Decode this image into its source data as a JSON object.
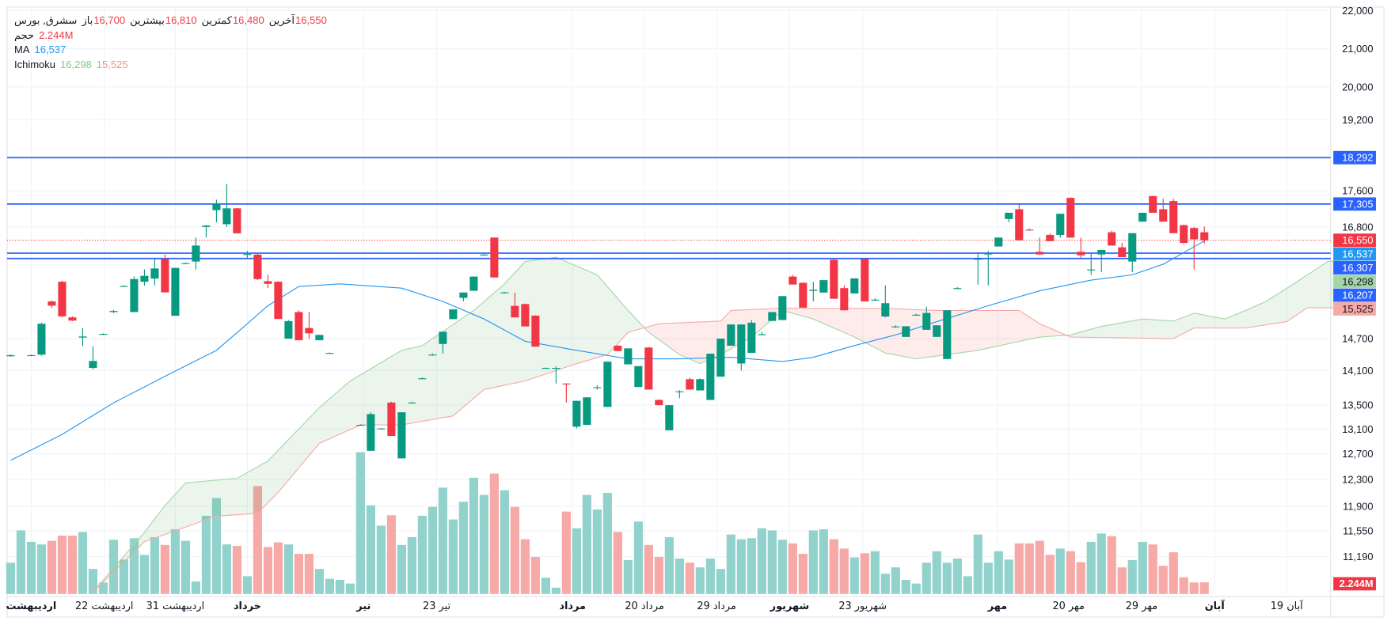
{
  "legend": {
    "symbol": "سشرق, بورس",
    "ohlc": [
      {
        "label": "باز",
        "value": "16,700"
      },
      {
        "label": "بیشترین",
        "value": "16,810"
      },
      {
        "label": "کمترین",
        "value": "16,480"
      },
      {
        "label": "آخرین",
        "value": "16,550"
      }
    ],
    "volume_label": "حجم",
    "volume_value": "2.244M",
    "ma_label": "MA",
    "ma_value": "16,537",
    "ichimoku_label": "Ichimoku",
    "ichimoku_a": "16,298",
    "ichimoku_b": "15,525"
  },
  "colors": {
    "up": "#089981",
    "down": "#f23645",
    "vol_up": "#92d2cc",
    "vol_down": "#f7a9a7",
    "ma": "#2196f3",
    "hline": "#2962ff",
    "span_a": "#a5d6a7",
    "span_b": "#f7a9a7"
  },
  "chart_data": {
    "type": "candlestick",
    "y_ticks": [
      "22,000",
      "21,000",
      "20,000",
      "19,200",
      "17,600",
      "16,800",
      "14,700",
      "14,100",
      "13,500",
      "13,100",
      "12,700",
      "12,300",
      "11,900",
      "11,550",
      "11,190"
    ],
    "x_labels": [
      {
        "bar": 2,
        "text": "اردیبهشت",
        "bold": true
      },
      {
        "bar": 9.1,
        "text": "22 اردیبهشت",
        "bold": false
      },
      {
        "bar": 16,
        "text": "31 اردیبهشت",
        "bold": false
      },
      {
        "bar": 23,
        "text": "خرداد",
        "bold": true
      },
      {
        "bar": 34.3,
        "text": "تیر",
        "bold": true
      },
      {
        "bar": 41.4,
        "text": "23 تیر",
        "bold": false
      },
      {
        "bar": 54.6,
        "text": "مرداد",
        "bold": true
      },
      {
        "bar": 61.6,
        "text": "20 مرداد",
        "bold": false
      },
      {
        "bar": 68.6,
        "text": "29 مرداد",
        "bold": false
      },
      {
        "bar": 75.7,
        "text": "شهریور",
        "bold": true
      },
      {
        "bar": 82.8,
        "text": "23 شهریور",
        "bold": false
      },
      {
        "bar": 95.9,
        "text": "مهر",
        "bold": true
      },
      {
        "bar": 102.8,
        "text": "20 مهر",
        "bold": false
      },
      {
        "bar": 109.9,
        "text": "29 مهر",
        "bold": false
      },
      {
        "bar": 117,
        "text": "آبان",
        "bold": true
      },
      {
        "bar": 124,
        "text": "19 آبان",
        "bold": false
      }
    ],
    "horizontal_lines": [
      18292,
      17305,
      16307,
      16207
    ],
    "price_tags": [
      {
        "value": 18292,
        "text": "18,292",
        "color": "#2962ff"
      },
      {
        "value": 17305,
        "text": "17,305",
        "color": "#2962ff"
      },
      {
        "value": 16550,
        "text": "16,550",
        "color": "#f23645"
      },
      {
        "value": 16537,
        "text": "16,537",
        "color": "#2196f3"
      },
      {
        "value": 16307,
        "text": "16,307",
        "color": "#2962ff"
      },
      {
        "value": 16298,
        "text": "16,298",
        "color": "#a5d6a7"
      },
      {
        "value": 16207,
        "text": "16,207",
        "color": "#2962ff"
      },
      {
        "value": 15525,
        "text": "15,525",
        "color": "#f7a9a7"
      }
    ],
    "last_price": 16550,
    "volume_tag": "2.244M",
    "candles_ohlc": [
      [
        14370,
        14400,
        14360,
        14390
      ],
      null,
      [
        14380,
        14400,
        14370,
        14390
      ],
      [
        14400,
        15000,
        14380,
        14980
      ],
      [
        15400,
        15420,
        15280,
        15320
      ],
      [
        15770,
        15790,
        15100,
        15120
      ],
      [
        15100,
        15120,
        15030,
        15040
      ],
      [
        14720,
        14900,
        14560,
        14740
      ],
      [
        14150,
        14560,
        14120,
        14280
      ],
      [
        14780,
        14800,
        14770,
        14790
      ],
      [
        15200,
        15240,
        15180,
        15220
      ],
      [
        15680,
        15700,
        15670,
        15690
      ],
      [
        15200,
        15870,
        15200,
        15820
      ],
      [
        15770,
        16000,
        15700,
        15880
      ],
      [
        15830,
        16200,
        15700,
        16020
      ],
      [
        16200,
        16280,
        15570,
        15570
      ],
      [
        15130,
        16030,
        15130,
        16030
      ],
      [
        16110,
        16130,
        16100,
        16120
      ],
      [
        16150,
        16600,
        16000,
        16450
      ],
      [
        16800,
        16840,
        16600,
        16830
      ],
      [
        17170,
        17400,
        16900,
        17300
      ],
      [
        16860,
        17740,
        16800,
        17210
      ],
      [
        17210,
        17220,
        16680,
        16680
      ],
      [
        16280,
        16350,
        16200,
        16290
      ],
      [
        16280,
        16300,
        15800,
        15820
      ],
      [
        15780,
        15900,
        15650,
        15730
      ],
      [
        15770,
        15780,
        15070,
        15070
      ],
      [
        14700,
        15050,
        14700,
        15030
      ],
      [
        15200,
        15230,
        14670,
        14670
      ],
      [
        14900,
        15200,
        14700,
        14800
      ],
      [
        14670,
        14770,
        14670,
        14770
      ],
      [
        14430,
        14440,
        14420,
        14430
      ],
      null,
      null,
      [
        13170,
        13180,
        13160,
        13170
      ],
      [
        12750,
        13380,
        12750,
        13350
      ],
      [
        13110,
        13120,
        13100,
        13110
      ],
      [
        13545,
        13560,
        12990,
        12990
      ],
      [
        12630,
        13380,
        12630,
        13380
      ],
      [
        13545,
        13560,
        13530,
        13545
      ],
      [
        13965,
        13980,
        13950,
        13965
      ],
      [
        14400,
        14420,
        14380,
        14400
      ],
      [
        14600,
        14830,
        14420,
        14830
      ],
      [
        15067,
        15250,
        15067,
        15250
      ],
      [
        15467,
        15567,
        15400,
        15567
      ],
      [
        15600,
        15870,
        15600,
        15867
      ],
      [
        16280,
        16300,
        16260,
        16280
      ],
      [
        16600,
        16600,
        15850,
        15850
      ],
      [
        15570,
        15580,
        15560,
        15570
      ],
      [
        15317,
        15567,
        15100,
        15100
      ],
      [
        15350,
        15360,
        14930,
        14930
      ],
      [
        15133,
        15140,
        14550,
        14550
      ],
      [
        14150,
        14160,
        14140,
        14150
      ],
      [
        14150,
        14180,
        13875,
        14150
      ],
      [
        13875,
        13880,
        13545,
        13870
      ],
      [
        13140,
        13575,
        13110,
        13575
      ],
      [
        13170,
        13635,
        13170,
        13635
      ],
      [
        13800,
        13845,
        13770,
        13810
      ],
      [
        13470,
        14267,
        13470,
        14267
      ],
      [
        14567,
        14580,
        14467,
        14467
      ],
      [
        14217,
        14517,
        14217,
        14517
      ],
      [
        13815,
        14183,
        13815,
        14183
      ],
      [
        14533,
        14540,
        13770,
        13770
      ],
      [
        13590,
        13600,
        13500,
        13500
      ],
      [
        13080,
        13500,
        13080,
        13500
      ],
      [
        13740,
        13760,
        13620,
        13740
      ],
      [
        13950,
        13980,
        13770,
        13770
      ],
      [
        13755,
        13965,
        13755,
        13950
      ],
      [
        13590,
        14417,
        13590,
        14417
      ],
      [
        13995,
        14700,
        13995,
        14700
      ],
      [
        14567,
        14967,
        14567,
        14967
      ],
      [
        14233,
        14967,
        14100,
        14967
      ],
      [
        14433,
        15050,
        14433,
        15000
      ],
      [
        14780,
        14830,
        14760,
        14783
      ],
      [
        15033,
        15200,
        15033,
        15200
      ],
      [
        15050,
        15500,
        15050,
        15500
      ],
      [
        15867,
        15900,
        15717,
        15717
      ],
      [
        15750,
        15760,
        15283,
        15283
      ],
      [
        15600,
        15767,
        15400,
        15620
      ],
      [
        15567,
        15800,
        15567,
        15800
      ],
      [
        16183,
        16200,
        15450,
        15450
      ],
      [
        15650,
        15700,
        15233,
        15233
      ],
      [
        15550,
        15833,
        15550,
        15833
      ],
      [
        16200,
        16210,
        15400,
        15400
      ],
      [
        15433,
        15460,
        15410,
        15433
      ],
      [
        15117,
        15700,
        15100,
        15367
      ],
      [
        14930,
        14950,
        14900,
        14930
      ],
      [
        14733,
        14933,
        14733,
        14933
      ],
      [
        15150,
        15170,
        15130,
        15150
      ],
      [
        14867,
        15300,
        14867,
        15183
      ],
      [
        14733,
        14950,
        14733,
        14950
      ],
      [
        14317,
        15233,
        14317,
        15233
      ],
      [
        15650,
        15670,
        15630,
        15650
      ],
      null,
      [
        16200,
        16300,
        15717,
        16200
      ],
      [
        16300,
        16350,
        15700,
        16300
      ],
      [
        16433,
        16600,
        16433,
        16600
      ],
      [
        16975,
        17112,
        16900,
        17112
      ],
      [
        17190,
        17300,
        16550,
        16550
      ],
      [
        16750,
        16770,
        16730,
        16740
      ],
      [
        16333,
        16600,
        16283,
        16283
      ],
      [
        16650,
        16680,
        16533,
        16533
      ],
      [
        16650,
        17090,
        16600,
        17090
      ],
      [
        17440,
        17450,
        16600,
        16600
      ],
      [
        16333,
        16600,
        16200,
        16267
      ],
      [
        16000,
        16300,
        15900,
        16000
      ],
      [
        16283,
        16367,
        15950,
        16367
      ],
      [
        16700,
        16730,
        16450,
        16450
      ],
      [
        16417,
        16500,
        16233,
        16233
      ],
      [
        16150,
        16683,
        15950,
        16683
      ],
      [
        16917,
        17112,
        16917,
        17112
      ],
      [
        17480,
        17490,
        17112,
        17112
      ],
      [
        17190,
        17420,
        16917,
        16917
      ],
      [
        17370,
        17420,
        16683,
        16683
      ],
      [
        16840,
        16850,
        16480,
        16500
      ],
      [
        16780,
        16800,
        16000,
        16567
      ],
      [
        16700,
        16810,
        16480,
        16550
      ]
    ],
    "volume_millions": [
      6.0,
      12.2,
      10.0,
      9.5,
      10.2,
      11.2,
      11.2,
      11.9,
      4.8,
      2.2,
      10.4,
      6.6,
      10.7,
      7.5,
      10.9,
      9.4,
      12.4,
      10.2,
      2.4,
      15.0,
      18.4,
      9.5,
      9.2,
      3.4,
      20.7,
      9.0,
      9.9,
      9.5,
      7.7,
      7.7,
      4.8,
      2.9,
      2.7,
      2.0,
      27.2,
      17.0,
      13.1,
      15.1,
      9.4,
      10.9,
      15.0,
      16.7,
      20.4,
      14.3,
      17.7,
      22.3,
      19.0,
      23.1,
      19.9,
      16.7,
      10.5,
      7.1,
      3.1,
      1.2,
      15.8,
      12.6,
      19.0,
      16.2,
      19.4,
      11.9,
      6.5,
      13.9,
      9.4,
      7.1,
      10.9,
      6.8,
      6.0,
      5.1,
      6.8,
      4.8,
      11.4,
      10.5,
      10.7,
      12.6,
      12.2,
      10.4,
      9.7,
      7.7,
      12.2,
      12.4,
      10.5,
      8.7,
      7.0,
      7.8,
      8.2,
      3.9,
      5.1,
      2.7,
      2.0,
      6.0,
      8.2,
      6.0,
      6.8,
      3.4,
      11.4,
      6.0,
      8.2,
      6.6,
      9.7,
      9.7,
      10.2,
      7.5,
      8.7,
      8.2,
      6.1,
      10.0,
      11.6,
      11.1,
      5.1,
      6.5,
      10.0,
      9.5,
      5.4,
      8.0,
      3.2,
      2.2,
      2.244
    ],
    "ma": [
      [
        0,
        12600
      ],
      [
        5,
        13014
      ],
      [
        10,
        13540
      ],
      [
        15,
        14000
      ],
      [
        20,
        14480
      ],
      [
        23,
        14980
      ],
      [
        25,
        15320
      ],
      [
        28,
        15680
      ],
      [
        32,
        15730
      ],
      [
        38,
        15650
      ],
      [
        42,
        15400
      ],
      [
        46,
        15070
      ],
      [
        50,
        14650
      ],
      [
        55,
        14480
      ],
      [
        60,
        14320
      ],
      [
        65,
        14320
      ],
      [
        70,
        14350
      ],
      [
        75,
        14270
      ],
      [
        78,
        14350
      ],
      [
        82,
        14570
      ],
      [
        86,
        14770
      ],
      [
        90,
        15020
      ],
      [
        95,
        15320
      ],
      [
        100,
        15600
      ],
      [
        105,
        15800
      ],
      [
        109,
        15900
      ],
      [
        112,
        16100
      ],
      [
        116,
        16537
      ]
    ],
    "ichimoku_span_a": [
      [
        8,
        10630
      ],
      [
        13,
        11530
      ],
      [
        15,
        11910
      ],
      [
        17,
        12250
      ],
      [
        22,
        12320
      ],
      [
        25,
        12590
      ],
      [
        30,
        13460
      ],
      [
        33,
        13920
      ],
      [
        38,
        14480
      ],
      [
        40,
        14570
      ],
      [
        45,
        15230
      ],
      [
        48,
        15730
      ],
      [
        50,
        16150
      ],
      [
        53,
        16230
      ],
      [
        57,
        15900
      ],
      [
        60,
        15230
      ],
      [
        62,
        14820
      ],
      [
        65,
        14400
      ],
      [
        67,
        14230
      ],
      [
        69,
        14400
      ],
      [
        72,
        14730
      ],
      [
        75,
        15230
      ],
      [
        78,
        15070
      ],
      [
        82,
        14730
      ],
      [
        85,
        14430
      ],
      [
        88,
        14320
      ],
      [
        91,
        14400
      ],
      [
        94,
        14480
      ],
      [
        100,
        14730
      ],
      [
        103,
        14770
      ],
      [
        106,
        14930
      ],
      [
        110,
        15070
      ],
      [
        113,
        15030
      ],
      [
        115,
        15180
      ],
      [
        118,
        15070
      ],
      [
        120,
        15230
      ],
      [
        122,
        15400
      ],
      [
        125,
        15770
      ],
      [
        128,
        16150
      ],
      [
        130,
        16190
      ]
    ],
    "ichimoku_span_b": [
      [
        8,
        10630
      ],
      [
        13,
        11400
      ],
      [
        20,
        11760
      ],
      [
        24,
        11800
      ],
      [
        26,
        12110
      ],
      [
        30,
        12870
      ],
      [
        34,
        13170
      ],
      [
        38,
        13170
      ],
      [
        43,
        13320
      ],
      [
        46,
        13770
      ],
      [
        50,
        13920
      ],
      [
        55,
        14230
      ],
      [
        58,
        14400
      ],
      [
        60,
        14820
      ],
      [
        63,
        14980
      ],
      [
        69,
        15030
      ],
      [
        70,
        15230
      ],
      [
        75,
        15270
      ],
      [
        85,
        15270
      ],
      [
        90,
        15230
      ],
      [
        98,
        15230
      ],
      [
        100,
        14980
      ],
      [
        103,
        14730
      ],
      [
        113,
        14700
      ],
      [
        115,
        14900
      ],
      [
        120,
        14900
      ],
      [
        124,
        15020
      ],
      [
        126,
        15280
      ],
      [
        130,
        15280
      ]
    ]
  }
}
